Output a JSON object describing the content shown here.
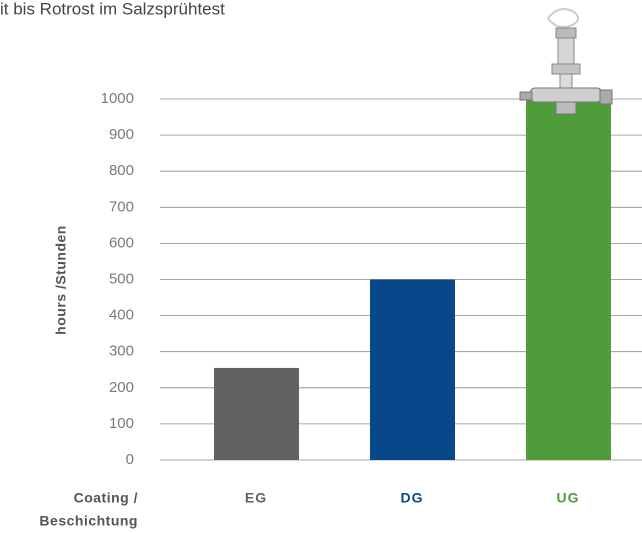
{
  "chart_data": {
    "type": "bar",
    "title": "it bis Rotrost im Salzsprühtest",
    "y_label": "hours /Stunden",
    "x_label": [
      "Coating /",
      "Beschichtung"
    ],
    "categories": [
      "EG",
      "DG",
      "UG"
    ],
    "values": [
      255,
      500,
      1000
    ],
    "colors": [
      "#626262",
      "#07478a",
      "#4f9c3a"
    ],
    "ylim": [
      0,
      1000
    ],
    "yticks": [
      0,
      100,
      200,
      300,
      400,
      500,
      600,
      700,
      800,
      900,
      1000
    ],
    "grid": true
  }
}
